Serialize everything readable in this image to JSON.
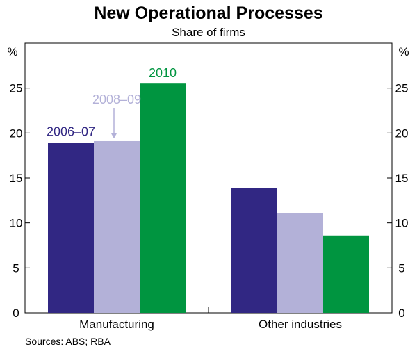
{
  "chart_data": {
    "type": "bar",
    "title": "New Operational Processes",
    "subtitle": "Share of firms",
    "ylabel_left": "%",
    "ylabel_right": "%",
    "ylim": [
      0,
      30
    ],
    "yticks": [
      0,
      5,
      10,
      15,
      20,
      25
    ],
    "categories": [
      "Manufacturing",
      "Other industries"
    ],
    "series": [
      {
        "name": "2006–07",
        "color": "#312783",
        "label_color": "#312783",
        "values": [
          18.9,
          13.9
        ]
      },
      {
        "name": "2008–09",
        "color": "#b3b1d8",
        "label_color": "#b3b1d8",
        "values": [
          19.1,
          11.1
        ]
      },
      {
        "name": "2010",
        "color": "#009540",
        "label_color": "#009540",
        "values": [
          25.5,
          8.6
        ]
      }
    ],
    "source": "Sources: ABS; RBA"
  }
}
